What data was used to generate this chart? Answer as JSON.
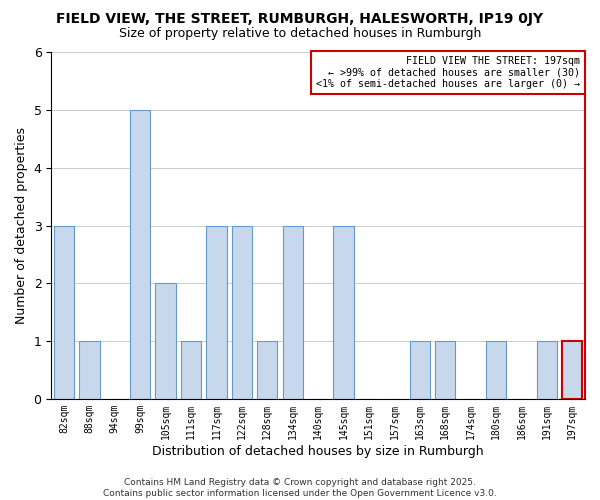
{
  "title": "FIELD VIEW, THE STREET, RUMBURGH, HALESWORTH, IP19 0JY",
  "subtitle": "Size of property relative to detached houses in Rumburgh",
  "xlabel": "Distribution of detached houses by size in Rumburgh",
  "ylabel": "Number of detached properties",
  "categories": [
    "82sqm",
    "88sqm",
    "94sqm",
    "99sqm",
    "105sqm",
    "111sqm",
    "117sqm",
    "122sqm",
    "128sqm",
    "134sqm",
    "140sqm",
    "145sqm",
    "151sqm",
    "157sqm",
    "163sqm",
    "168sqm",
    "174sqm",
    "180sqm",
    "186sqm",
    "191sqm",
    "197sqm"
  ],
  "values": [
    3,
    1,
    0,
    5,
    2,
    1,
    3,
    3,
    1,
    3,
    0,
    3,
    0,
    0,
    1,
    1,
    0,
    1,
    0,
    1,
    1
  ],
  "bar_color": "#c8d8ec",
  "bar_edge_color": "#6699cc",
  "last_bar_edge_color": "#cc0000",
  "annotation_box_text_line1": "FIELD VIEW THE STREET: 197sqm",
  "annotation_box_text_line2": "← >99% of detached houses are smaller (30)",
  "annotation_box_text_line3": "<1% of semi-detached houses are larger (0) →",
  "annotation_box_edge_color": "#cc0000",
  "ylim": [
    0,
    6
  ],
  "yticks": [
    0,
    1,
    2,
    3,
    4,
    5,
    6
  ],
  "footer_line1": "Contains HM Land Registry data © Crown copyright and database right 2025.",
  "footer_line2": "Contains public sector information licensed under the Open Government Licence v3.0.",
  "background_color": "#ffffff",
  "grid_color": "#cccccc"
}
